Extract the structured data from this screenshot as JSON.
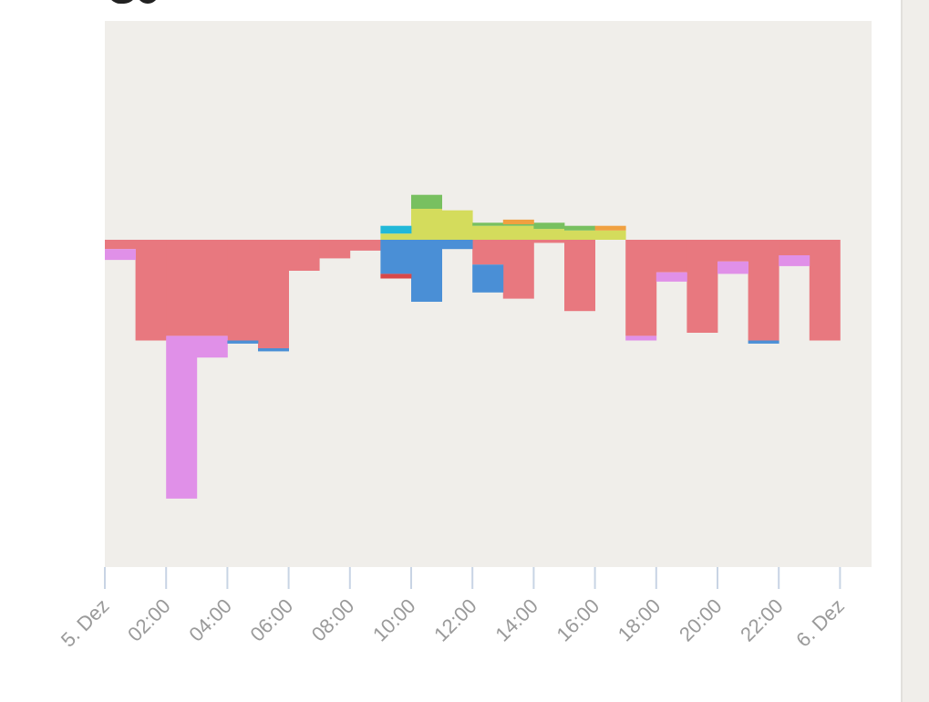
{
  "chart_data": {
    "type": "bar",
    "stacked": true,
    "x": [
      "5. Dez",
      "01:00",
      "02:00",
      "03:00",
      "04:00",
      "05:00",
      "06:00",
      "07:00",
      "08:00",
      "09:00",
      "10:00",
      "11:00",
      "12:00",
      "13:00",
      "14:00",
      "15:00",
      "16:00",
      "17:00",
      "18:00",
      "19:00",
      "20:00",
      "21:00",
      "22:00",
      "23:00"
    ],
    "tick_labels": [
      "5. Dez",
      "02:00",
      "04:00",
      "06:00",
      "08:00",
      "10:00",
      "12:00",
      "14:00",
      "16:00",
      "18:00",
      "20:00",
      "22:00",
      "6. Dez"
    ],
    "xlabel": "",
    "ylabel": "",
    "ylim": [
      -10.5,
      7
    ],
    "grid": false,
    "background": "#f0eeea",
    "series": [
      {
        "color": "#e8787f",
        "values": [
          -0.3,
          -3.25,
          -3.1,
          -3.1,
          -3.25,
          -3.5,
          -1,
          -0.6,
          -0.35,
          0,
          0,
          0,
          -0.8,
          -1.9,
          -0.1,
          -2.3,
          0,
          -3.1,
          -1.05,
          -3.0,
          -0.7,
          -3.25,
          -0.5,
          -3.25
        ]
      },
      {
        "color": "#e090e8",
        "values": [
          -0.35,
          0,
          -5.25,
          -0.7,
          0,
          0,
          0,
          0,
          0,
          0,
          0,
          0,
          0,
          0,
          0,
          0,
          0,
          -0.15,
          -0.3,
          0,
          -0.4,
          0,
          -0.35,
          0
        ]
      },
      {
        "color": "#4a8fd6",
        "values": [
          0,
          0,
          0,
          0,
          -0.1,
          -0.1,
          0,
          0,
          0,
          -1.1,
          -2.0,
          -0.3,
          -0.9,
          0,
          0,
          0,
          0,
          0,
          0,
          0,
          0,
          -0.1,
          0,
          0
        ]
      },
      {
        "color": "#d4dc5c",
        "values": [
          0,
          0,
          0,
          0,
          0,
          0,
          0,
          0,
          0,
          0.2,
          1.0,
          0.95,
          0.45,
          0.45,
          0.35,
          0.3,
          0.3,
          0,
          0,
          0,
          0,
          0,
          0,
          0
        ]
      },
      {
        "color": "#78c060",
        "values": [
          0,
          0,
          0,
          0,
          0,
          0,
          0,
          0,
          0,
          0,
          0.45,
          0,
          0.1,
          0.05,
          0.2,
          0.15,
          0,
          0,
          0,
          0,
          0,
          0,
          0,
          0
        ]
      },
      {
        "color": "#22b8d8",
        "values": [
          0,
          0,
          0,
          0,
          0,
          0,
          0,
          0,
          0,
          0.25,
          0,
          0,
          0,
          0,
          0,
          0,
          0,
          0,
          0,
          0,
          0,
          0,
          0,
          0
        ]
      },
      {
        "color": "#f0a040",
        "values": [
          0,
          0,
          0,
          0,
          0,
          0,
          0,
          0,
          0,
          0,
          0,
          0,
          0,
          0.15,
          0,
          0,
          0.15,
          0,
          0,
          0,
          0,
          0,
          0,
          0
        ]
      },
      {
        "color": "#d84848",
        "values": [
          0,
          0,
          0,
          0,
          0,
          0,
          0,
          0,
          0,
          -0.15,
          0,
          0,
          0,
          0,
          0,
          0,
          0,
          0,
          0,
          0,
          0,
          0,
          0,
          0
        ]
      }
    ]
  }
}
